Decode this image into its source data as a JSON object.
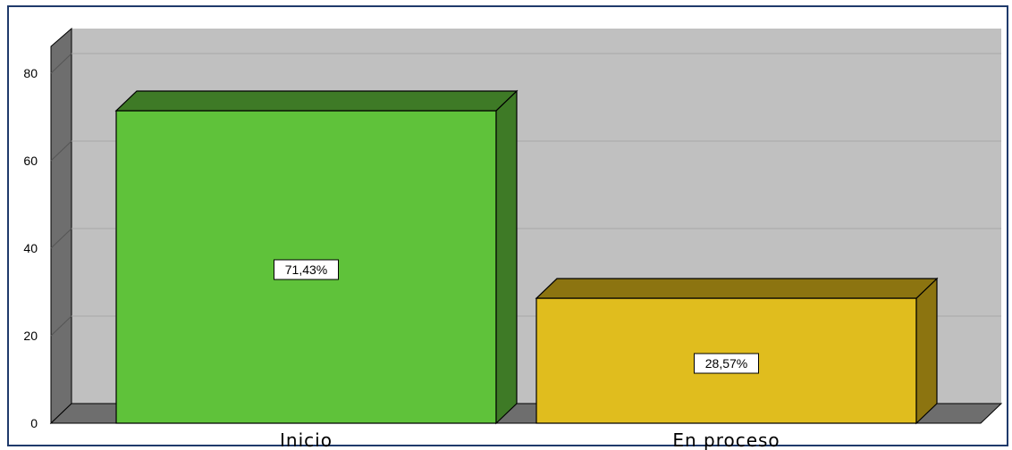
{
  "chart_data": {
    "type": "bar",
    "categories": [
      "Inicio",
      "En proceso"
    ],
    "values": [
      71.43,
      28.57
    ],
    "data_labels": [
      "71,43%",
      "28,57%"
    ],
    "colors": [
      "#5fc23a",
      "#e0bd1e"
    ],
    "side_colors": [
      "#3e7a26",
      "#8c7410"
    ],
    "yticks": [
      0,
      20,
      40,
      60,
      80
    ],
    "ylim": [
      0,
      85
    ],
    "grid": true,
    "title": "",
    "xlabel": "",
    "ylabel": ""
  }
}
